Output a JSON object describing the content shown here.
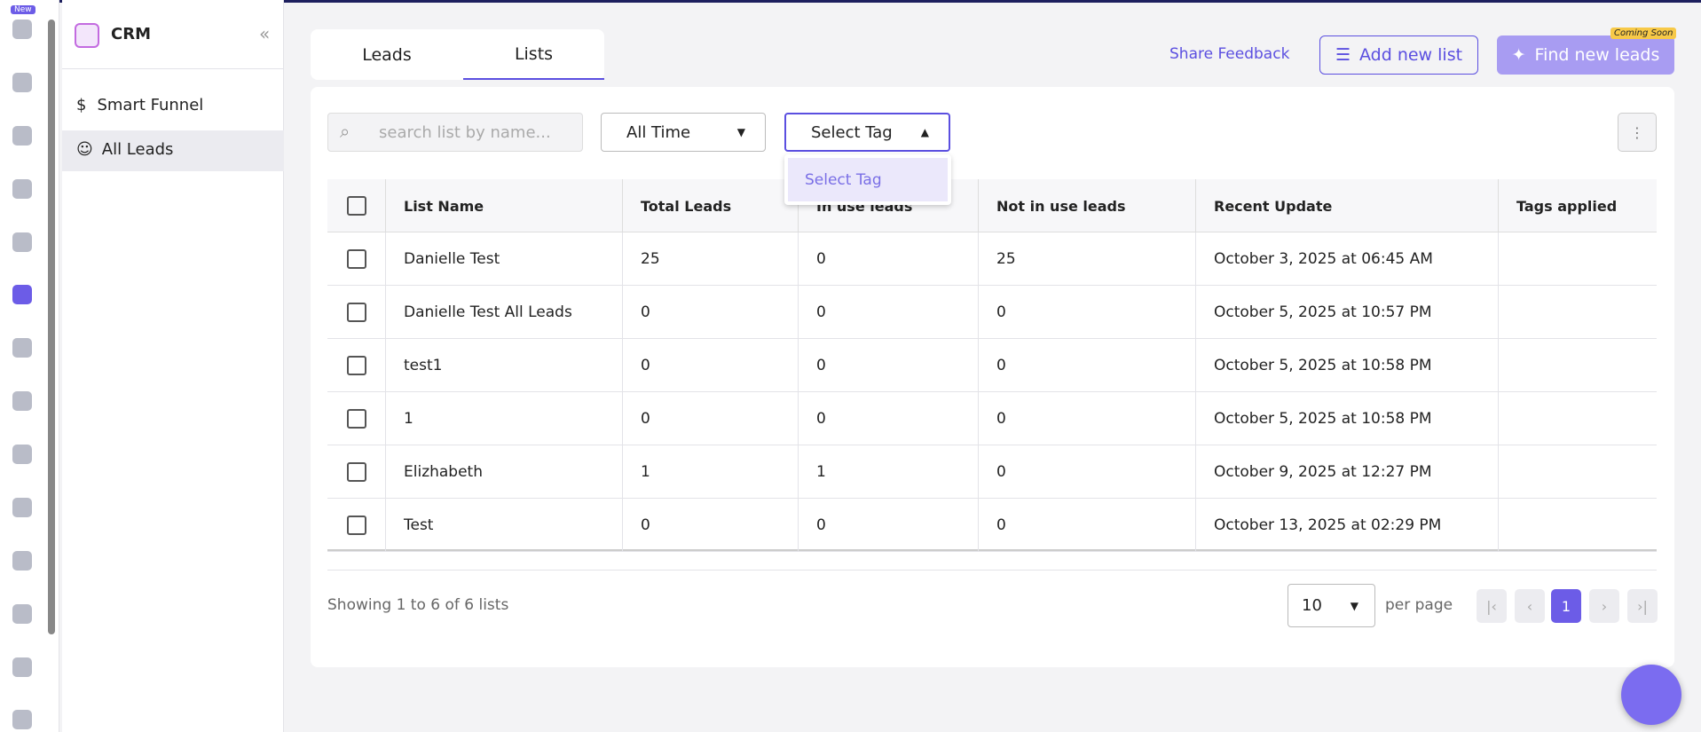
{
  "badge": "New",
  "sidebar": {
    "title": "CRM",
    "items": [
      "Smart Funnel",
      "All Leads"
    ]
  },
  "tabs": [
    "Leads",
    "Lists"
  ],
  "actions": {
    "feedback": "Share Feedback",
    "add": "Add new list",
    "find": "Find new leads",
    "coming_soon": "Coming Soon"
  },
  "filters": {
    "search_placeholder": "search list by name...",
    "time": "All Time",
    "tag": "Select Tag",
    "tag_option": "Select Tag"
  },
  "table": {
    "headers": [
      "List Name",
      "Total Leads",
      "In use leads",
      "Not in use leads",
      "Recent Update",
      "Tags applied"
    ],
    "rows": [
      {
        "name": "Danielle Test",
        "total": "25",
        "in_use": "0",
        "not_in_use": "25",
        "updated": "October 3, 2025 at 06:45 AM"
      },
      {
        "name": "Danielle Test All Leads",
        "total": "0",
        "in_use": "0",
        "not_in_use": "0",
        "updated": "October 5, 2025 at 10:57 PM"
      },
      {
        "name": "test1",
        "total": "0",
        "in_use": "0",
        "not_in_use": "0",
        "updated": "October 5, 2025 at 10:58 PM"
      },
      {
        "name": "1",
        "total": "0",
        "in_use": "0",
        "not_in_use": "0",
        "updated": "October 5, 2025 at 10:58 PM"
      },
      {
        "name": "Elizhabeth",
        "total": "1",
        "in_use": "1",
        "not_in_use": "0",
        "updated": "October 9, 2025 at 12:27 PM"
      },
      {
        "name": "Test",
        "total": "0",
        "in_use": "0",
        "not_in_use": "0",
        "updated": "October 13, 2025 at 02:29 PM"
      }
    ]
  },
  "footer": {
    "showing": "Showing 1 to 6 of 6 lists",
    "per_page_value": "10",
    "per_page": "per page",
    "page": "1"
  }
}
